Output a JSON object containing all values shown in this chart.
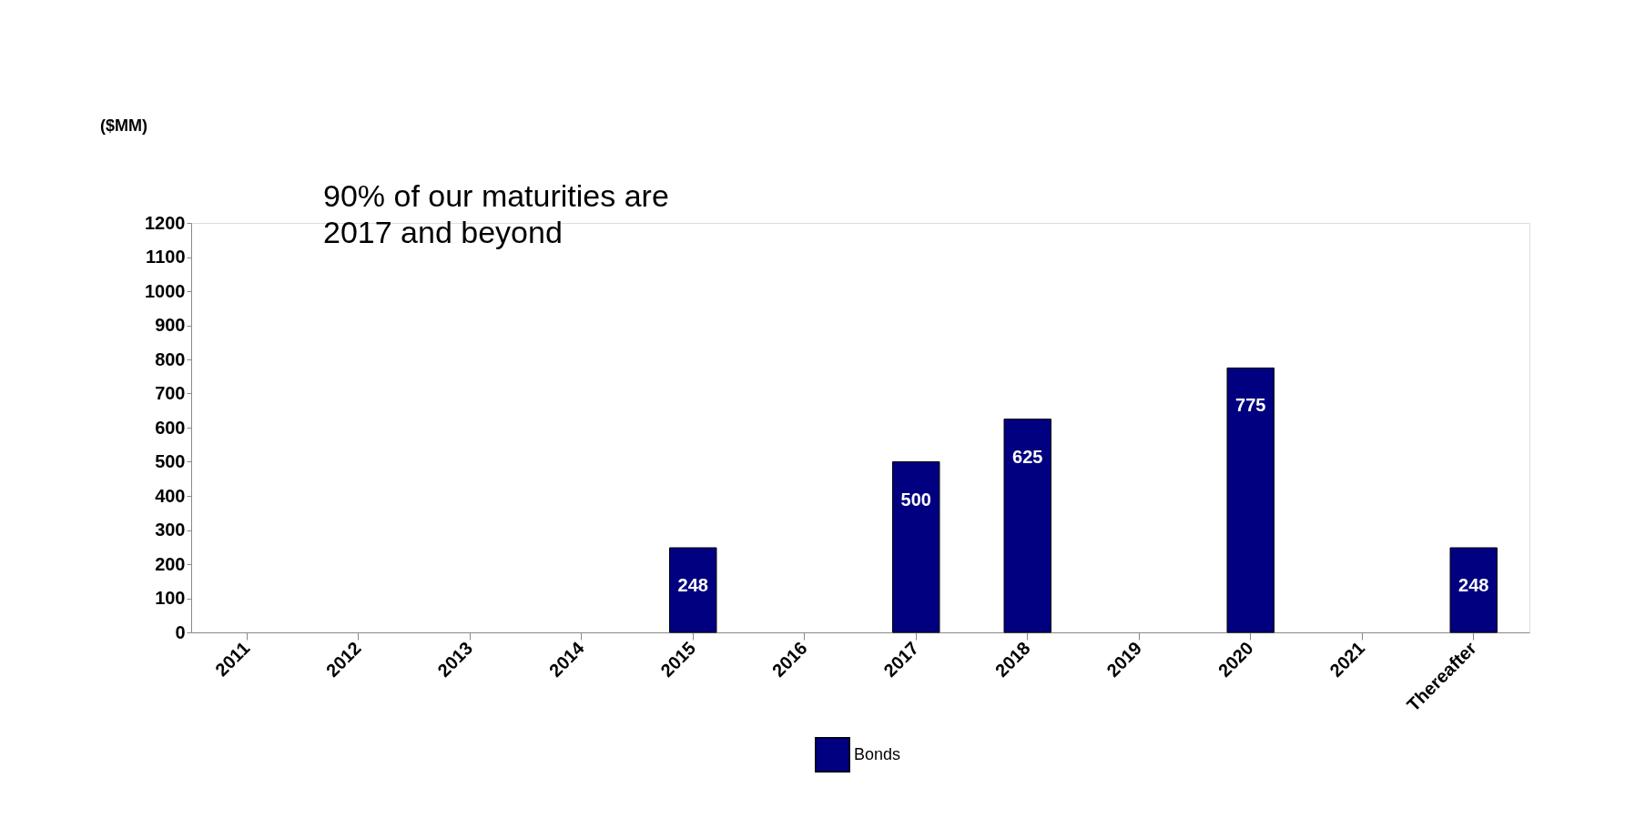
{
  "chart_data": {
    "type": "bar",
    "categories": [
      "2011",
      "2012",
      "2013",
      "2014",
      "2015",
      "2016",
      "2017",
      "2018",
      "2019",
      "2020",
      "2021",
      "Thereafter"
    ],
    "series": [
      {
        "name": "Bonds",
        "color": "#000080",
        "values": [
          null,
          null,
          null,
          null,
          248,
          null,
          500,
          625,
          null,
          775,
          null,
          248
        ]
      }
    ],
    "ylim": [
      0,
      1200
    ],
    "yticks": [
      0,
      100,
      200,
      300,
      400,
      500,
      600,
      700,
      800,
      900,
      1000,
      1100,
      1200
    ],
    "data_labels": true,
    "grid": false,
    "legend": "bottom",
    "annotations": [
      "($MM)",
      "90% of our maturities are\n2017 and beyond"
    ]
  }
}
